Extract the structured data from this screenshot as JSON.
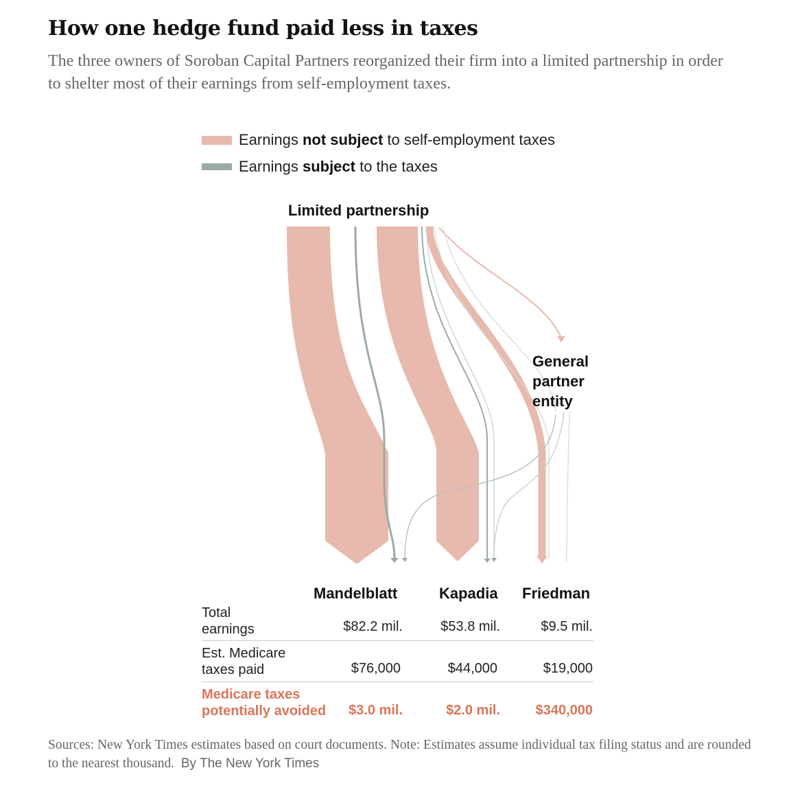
{
  "header": {
    "title": "How one hedge fund paid less in taxes",
    "subtitle": "The three owners of Soroban Capital Partners reorganized their firm into a limited partnership in order to shelter most of their earnings from self-employment taxes."
  },
  "legend": {
    "not_subject": {
      "prefix": "Earnings ",
      "bold": "not subject",
      "suffix": " to self-employment taxes",
      "color": "#e8b9ad"
    },
    "subject": {
      "prefix": "Earnings ",
      "bold": "subject",
      "suffix": " to the taxes",
      "color": "#9aaba6"
    }
  },
  "diagram": {
    "source_label": "Limited partnership",
    "gp_label_lines": [
      "General",
      "partner",
      "entity"
    ]
  },
  "table": {
    "columns": [
      "Mandelblatt",
      "Kapadia",
      "Friedman"
    ],
    "rows": [
      {
        "label_lines": [
          "Total",
          "earnings"
        ],
        "values": [
          "$82.2 mil.",
          "$53.8 mil.",
          "$9.5 mil."
        ]
      },
      {
        "label_lines": [
          "Est. Medicare",
          "taxes paid"
        ],
        "values": [
          "$76,000",
          "$44,000",
          "$19,000"
        ]
      },
      {
        "label_lines": [
          "Medicare taxes",
          "potentially avoided"
        ],
        "values": [
          "$3.0 mil.",
          "$2.0 mil.",
          "$340,000"
        ],
        "highlight_color": "#d9765a"
      }
    ]
  },
  "footer": {
    "source": "Sources: New York Times estimates based on court documents. Note: Estimates assume individual tax filing status and are rounded to the nearest thousand.",
    "credit": "By The New York Times"
  }
}
